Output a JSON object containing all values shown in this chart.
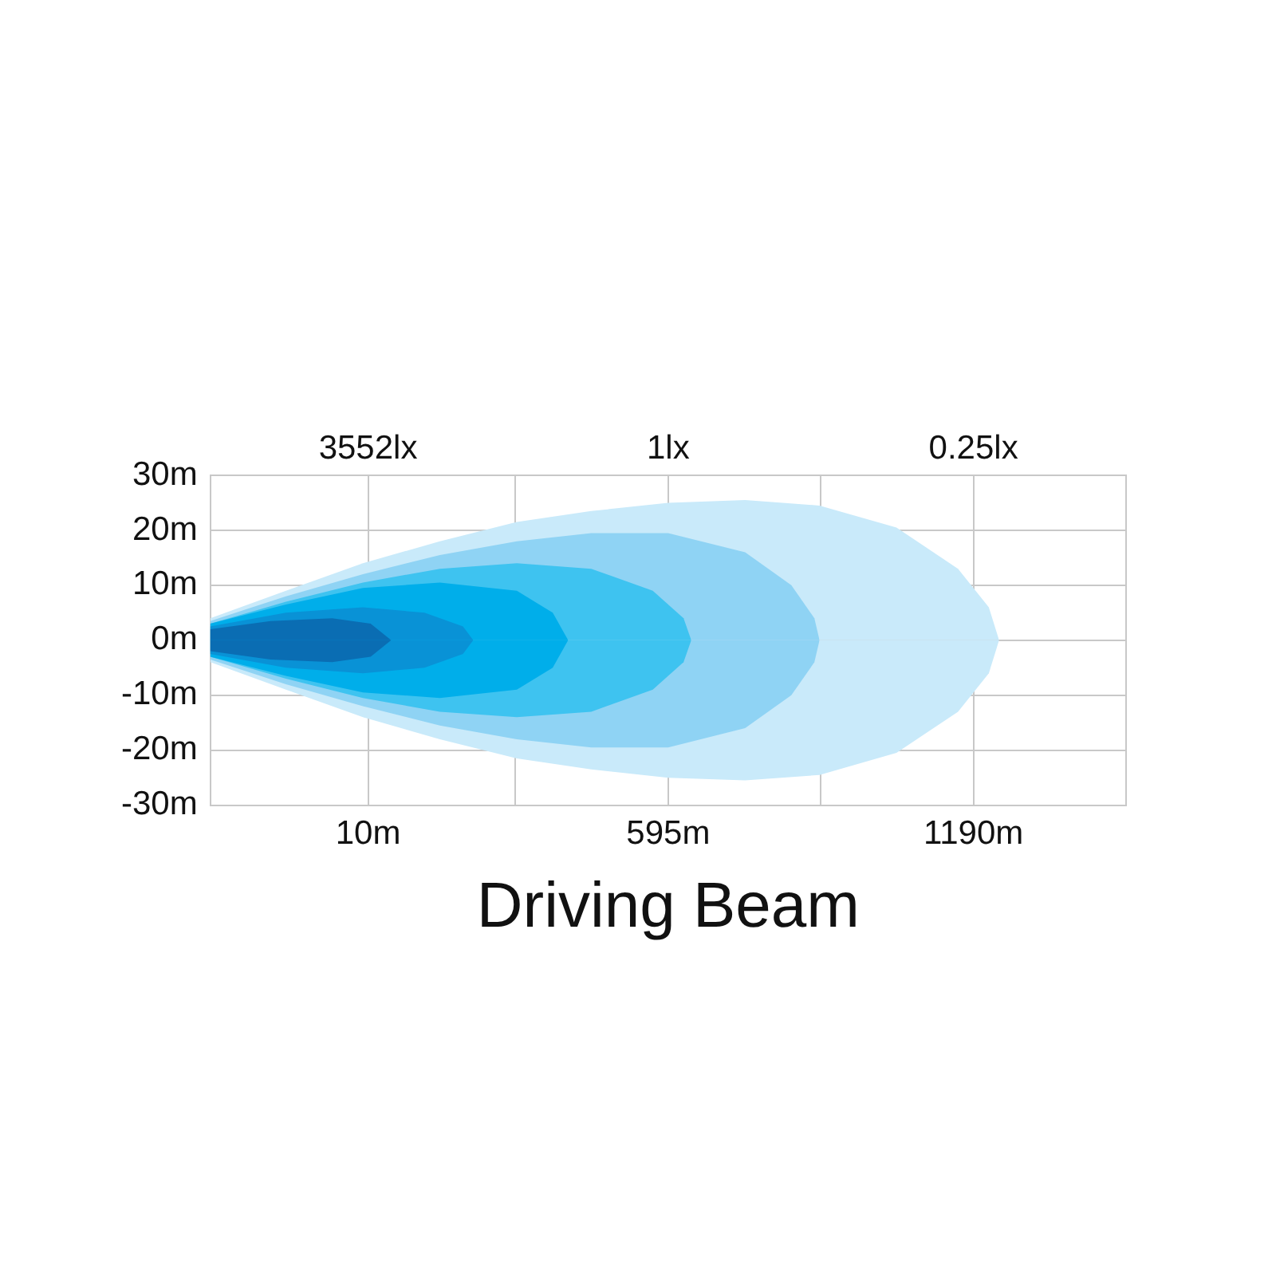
{
  "chart_data": {
    "type": "area",
    "xlabel": "Driving Beam",
    "xlim": [
      -297.5,
      1487.5
    ],
    "xticks": [
      {
        "value": 10,
        "label": "10m"
      },
      {
        "value": 297.5,
        "label": null
      },
      {
        "value": 595,
        "label": "595m"
      },
      {
        "value": 892.5,
        "label": null
      },
      {
        "value": 1190,
        "label": "1190m"
      }
    ],
    "annotations": [
      "3552lx",
      "1lx",
      "0.25lx"
    ],
    "ylim": [
      -30,
      30
    ],
    "yticks": [
      {
        "value": -30,
        "label": "-30m"
      },
      {
        "value": -20,
        "label": "-20m"
      },
      {
        "value": -10,
        "label": "-10m"
      },
      {
        "value": 0,
        "label": "0m"
      },
      {
        "value": 10,
        "label": "10m"
      },
      {
        "value": 20,
        "label": "20m"
      },
      {
        "value": 30,
        "label": "30m"
      }
    ],
    "grid": true,
    "series": [
      {
        "color": "#c9eafa",
        "x": [
          -297.5,
          -150,
          0,
          150,
          300,
          445,
          595,
          745,
          890,
          1040,
          1160,
          1220,
          1240
        ],
        "values": [
          4,
          9,
          14,
          18,
          21.5,
          23.5,
          25,
          25.5,
          24.5,
          20.5,
          13,
          6,
          0
        ]
      },
      {
        "color": "#c9eafa",
        "x": [
          -297.5,
          -150,
          0,
          150,
          300,
          445,
          595,
          745,
          890,
          1040,
          1160,
          1220,
          1240
        ],
        "values": [
          -4,
          -9,
          -14,
          -18,
          -21.5,
          -23.5,
          -25,
          -25.5,
          -24.5,
          -20.5,
          -13,
          -6,
          0
        ]
      },
      {
        "color": "#8fd3f4",
        "x": [
          -297.5,
          -150,
          0,
          150,
          300,
          445,
          595,
          745,
          835,
          880,
          890
        ],
        "values": [
          3.5,
          8,
          12,
          15.5,
          18,
          19.5,
          19.5,
          16,
          10,
          4,
          0
        ]
      },
      {
        "color": "#8fd3f4",
        "x": [
          -297.5,
          -150,
          0,
          150,
          300,
          445,
          595,
          745,
          835,
          880,
          890
        ],
        "values": [
          -3.5,
          -8,
          -12,
          -15.5,
          -18,
          -19.5,
          -19.5,
          -16,
          -10,
          -4,
          0
        ]
      },
      {
        "color": "#3ec3f0",
        "x": [
          -297.5,
          -150,
          0,
          150,
          300,
          445,
          565,
          625,
          640
        ],
        "values": [
          3,
          7,
          10.5,
          13,
          14,
          13,
          9,
          4,
          0
        ]
      },
      {
        "color": "#3ec3f0",
        "x": [
          -297.5,
          -150,
          0,
          150,
          300,
          445,
          565,
          625,
          640
        ],
        "values": [
          -3,
          -7,
          -10.5,
          -13,
          -14,
          -13,
          -9,
          -4,
          0
        ]
      },
      {
        "color": "#00aeea",
        "x": [
          -297.5,
          -150,
          0,
          150,
          300,
          370,
          400
        ],
        "values": [
          3,
          6.5,
          9.5,
          10.5,
          9,
          5,
          0
        ]
      },
      {
        "color": "#00aeea",
        "x": [
          -297.5,
          -150,
          0,
          150,
          300,
          370,
          400
        ],
        "values": [
          -3,
          -6.5,
          -9.5,
          -10.5,
          -9,
          -5,
          0
        ]
      },
      {
        "color": "#0992d6",
        "x": [
          -297.5,
          -150,
          0,
          120,
          195,
          215
        ],
        "values": [
          2.5,
          5,
          6,
          5,
          2.5,
          0
        ]
      },
      {
        "color": "#0992d6",
        "x": [
          -297.5,
          -150,
          0,
          120,
          195,
          215
        ],
        "values": [
          -2.5,
          -5,
          -6,
          -5,
          -2.5,
          0
        ]
      },
      {
        "color": "#0a6db3",
        "x": [
          -297.5,
          -180,
          -60,
          15,
          55
        ],
        "values": [
          2,
          3.5,
          4,
          3,
          0
        ]
      },
      {
        "color": "#0a6db3",
        "x": [
          -297.5,
          -180,
          -60,
          15,
          55
        ],
        "values": [
          -2,
          -3.5,
          -4,
          -3,
          0
        ]
      }
    ]
  }
}
